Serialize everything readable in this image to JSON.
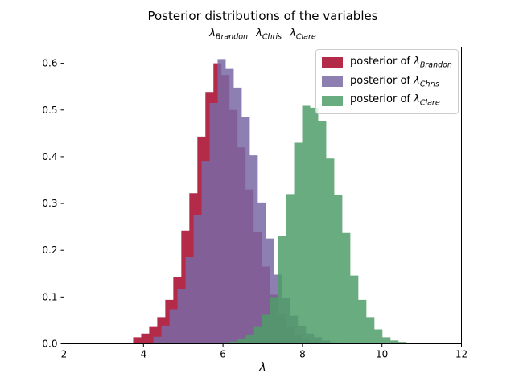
{
  "figure": {
    "title": "Posterior distributions of the variables",
    "subtitle_vars": [
      {
        "symbol": "λ",
        "sub": "Brandon"
      },
      {
        "symbol": "λ",
        "sub": "Chris"
      },
      {
        "symbol": "λ",
        "sub": "Clare"
      }
    ],
    "xlabel": "λ"
  },
  "legend": {
    "items": [
      {
        "prefix": "posterior of ",
        "symbol": "λ",
        "sub": "Brandon"
      },
      {
        "prefix": "posterior of ",
        "symbol": "λ",
        "sub": "Chris"
      },
      {
        "prefix": "posterior of ",
        "symbol": "λ",
        "sub": "Clare"
      }
    ]
  },
  "chart_data": {
    "type": "bar",
    "subtype": "stepfilled-histogram",
    "title": "Posterior distributions of the variables λ_Brandon λ_Chris λ_Clare",
    "xlabel": "λ",
    "ylabel": "",
    "grid": false,
    "legend_position": "upper right",
    "alpha": 0.85,
    "axes": {
      "xlim": [
        2,
        12
      ],
      "ylim": [
        0,
        0.6346
      ],
      "x_ticks": [
        {
          "value": 2,
          "label": "2"
        },
        {
          "value": 4,
          "label": "4"
        },
        {
          "value": 6,
          "label": "6"
        },
        {
          "value": 8,
          "label": "8"
        },
        {
          "value": 10,
          "label": "10"
        },
        {
          "value": 12,
          "label": "12"
        }
      ],
      "y_ticks": [
        {
          "value": 0.0,
          "label": "0.0"
        },
        {
          "value": 0.1,
          "label": "0.1"
        },
        {
          "value": 0.2,
          "label": "0.2"
        },
        {
          "value": 0.3,
          "label": "0.3"
        },
        {
          "value": 0.4,
          "label": "0.4"
        },
        {
          "value": 0.5,
          "label": "0.5"
        },
        {
          "value": 0.6,
          "label": "0.6"
        }
      ]
    },
    "series": [
      {
        "id": "brandon",
        "name": "posterior of λ_Brandon",
        "color": "#A60628",
        "bin_start": 3.74,
        "bin_width": 0.202,
        "heights": [
          0.014,
          0.022,
          0.036,
          0.057,
          0.094,
          0.142,
          0.242,
          0.322,
          0.443,
          0.537,
          0.6,
          0.575,
          0.5,
          0.42,
          0.33,
          0.24,
          0.165,
          0.105,
          0.063,
          0.035,
          0.018,
          0.009,
          0.004
        ]
      },
      {
        "id": "chris",
        "name": "posterior of λ_Chris",
        "color": "#7A68A6",
        "bin_start": 4.25,
        "bin_width": 0.202,
        "heights": [
          0.015,
          0.039,
          0.074,
          0.117,
          0.185,
          0.276,
          0.391,
          0.515,
          0.609,
          0.588,
          0.548,
          0.485,
          0.403,
          0.302,
          0.225,
          0.148,
          0.099,
          0.06,
          0.037,
          0.022,
          0.014,
          0.007,
          0.003
        ]
      },
      {
        "id": "clare",
        "name": "posterior of λ_Clare",
        "color": "#4F9D69",
        "bin_start": 5.77,
        "bin_width": 0.202,
        "heights": [
          0.001,
          0.003,
          0.005,
          0.01,
          0.02,
          0.036,
          0.062,
          0.1,
          0.23,
          0.32,
          0.43,
          0.509,
          0.505,
          0.477,
          0.396,
          0.318,
          0.237,
          0.146,
          0.094,
          0.057,
          0.031,
          0.014,
          0.007,
          0.004,
          0.002,
          0.001,
          0.0008,
          0.0005
        ]
      }
    ]
  }
}
